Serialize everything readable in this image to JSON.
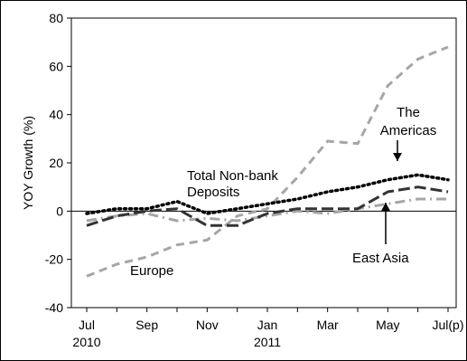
{
  "chart_data": {
    "type": "line",
    "title": "",
    "xlabel": "",
    "ylabel": "YOY Growth (%)",
    "ylim": [
      -40,
      80
    ],
    "yticks": [
      -40,
      -20,
      0,
      20,
      40,
      60,
      80
    ],
    "x_tick_labels": [
      "Jul",
      "Sep",
      "Nov",
      "Jan",
      "Mar",
      "May",
      "Jul(p)"
    ],
    "x_year_labels": [
      "2010",
      "2011"
    ],
    "x": [
      "Jul 2010",
      "Aug 2010",
      "Sep 2010",
      "Oct 2010",
      "Nov 2010",
      "Dec 2010",
      "Jan 2011",
      "Feb 2011",
      "Mar 2011",
      "Apr 2011",
      "May 2011",
      "Jun 2011",
      "Jul 2011"
    ],
    "series": [
      {
        "name": "Total Non-bank Deposits",
        "color": "#000000",
        "style": "dotted-heavy",
        "values": [
          -1,
          1,
          1,
          4,
          -1,
          1,
          3,
          5,
          8,
          10,
          13,
          15,
          13
        ]
      },
      {
        "name": "The Americas",
        "color": "#333333",
        "style": "long-dash",
        "values": [
          -6,
          -2,
          0,
          1,
          -6,
          -6,
          -1,
          1,
          1,
          1,
          8,
          10,
          8
        ]
      },
      {
        "name": "East Asia",
        "color": "#a6a6a6",
        "style": "dash-dot",
        "values": [
          -4,
          -2,
          -1,
          -4,
          -3,
          -4,
          -2,
          0,
          -1,
          1,
          3,
          5,
          5
        ]
      },
      {
        "name": "Europe",
        "color": "#a6a6a6",
        "style": "dash",
        "values": [
          -27,
          -22,
          -19,
          -14,
          -12,
          -2,
          1,
          14,
          29,
          28,
          52,
          63,
          68
        ]
      }
    ],
    "annotations": [
      {
        "text": "The",
        "series": "The Americas"
      },
      {
        "text": "Americas",
        "series": "The Americas"
      },
      {
        "text": "Total Non-bank",
        "series": "Total Non-bank Deposits"
      },
      {
        "text": "Deposits",
        "series": "Total Non-bank Deposits"
      },
      {
        "text": "East Asia",
        "series": "East Asia"
      },
      {
        "text": "Europe",
        "series": "Europe"
      }
    ],
    "grid": false,
    "legend": "none"
  }
}
